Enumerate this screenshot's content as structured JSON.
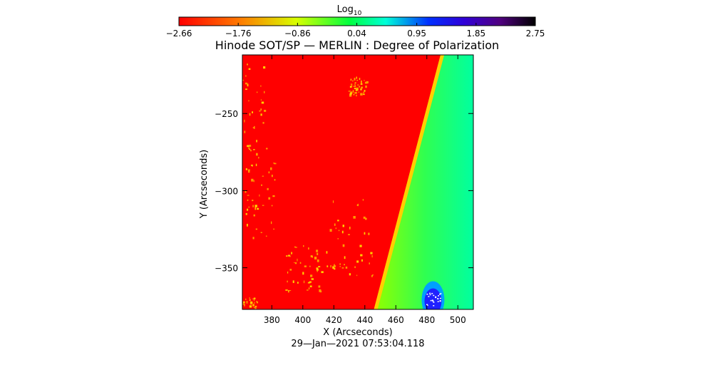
{
  "chart_data": {
    "type": "heatmap",
    "title": "Hinode SOT/SP — MERLIN : Degree of Polarization",
    "xlabel": "X (Arcseconds)",
    "ylabel": "Y (Arcseconds)",
    "timestamp": "29—Jan—2021 07:53:04.118",
    "colorbar": {
      "label_base": "Log",
      "label_sub": "10",
      "ticks": [
        -2.66,
        -1.76,
        -0.86,
        0.04,
        0.95,
        1.85,
        2.75
      ],
      "tick_labels": [
        "−2.66",
        "−1.76",
        "−0.86",
        "0.04",
        "0.95",
        "1.85",
        "2.75"
      ],
      "min": -2.66,
      "max": 2.75
    },
    "xlim": [
      361,
      510
    ],
    "ylim": [
      -377,
      -212
    ],
    "x_ticks": [
      380,
      400,
      420,
      440,
      460,
      480,
      500
    ],
    "x_tick_labels": [
      "380",
      "400",
      "420",
      "440",
      "460",
      "480",
      "500"
    ],
    "y_ticks": [
      -250,
      -300,
      -350
    ],
    "y_tick_labels": [
      "−250",
      "−300",
      "−350"
    ],
    "limb_line": {
      "x_top": 490,
      "y_top": -212,
      "x_bottom": 447,
      "y_bottom": -377
    },
    "regions": {
      "disk_value": -2.66,
      "limb_value": -1.3,
      "offlimb_value": 0.2,
      "offlimb_far_value": 0.6,
      "hot_spot_value": 1.7
    },
    "hot_spot": {
      "x": 484,
      "y": -368
    }
  }
}
